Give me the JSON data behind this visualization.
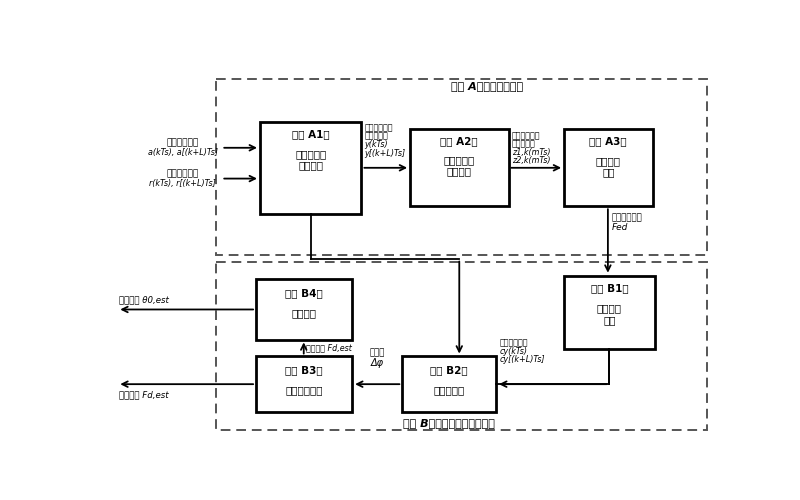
{
  "title_A": "步骤 A：初始频偏估计",
  "title_B": "步骤 B：精确频偏与相位估计",
  "bg": "#ffffff",
  "font_cjk": "SimHei",
  "font_fallback": "DejaVu Sans",
  "dashed_A": [
    148,
    25,
    638,
    228
  ],
  "dashed_B": [
    148,
    262,
    638,
    218
  ],
  "A1": [
    205,
    80,
    132,
    120
  ],
  "A2": [
    400,
    90,
    128,
    100
  ],
  "A3": [
    600,
    90,
    115,
    100
  ],
  "B1": [
    600,
    280,
    118,
    95
  ],
  "B2": [
    390,
    385,
    122,
    72
  ],
  "B3": [
    200,
    385,
    125,
    72
  ],
  "B4": [
    200,
    285,
    125,
    78
  ]
}
